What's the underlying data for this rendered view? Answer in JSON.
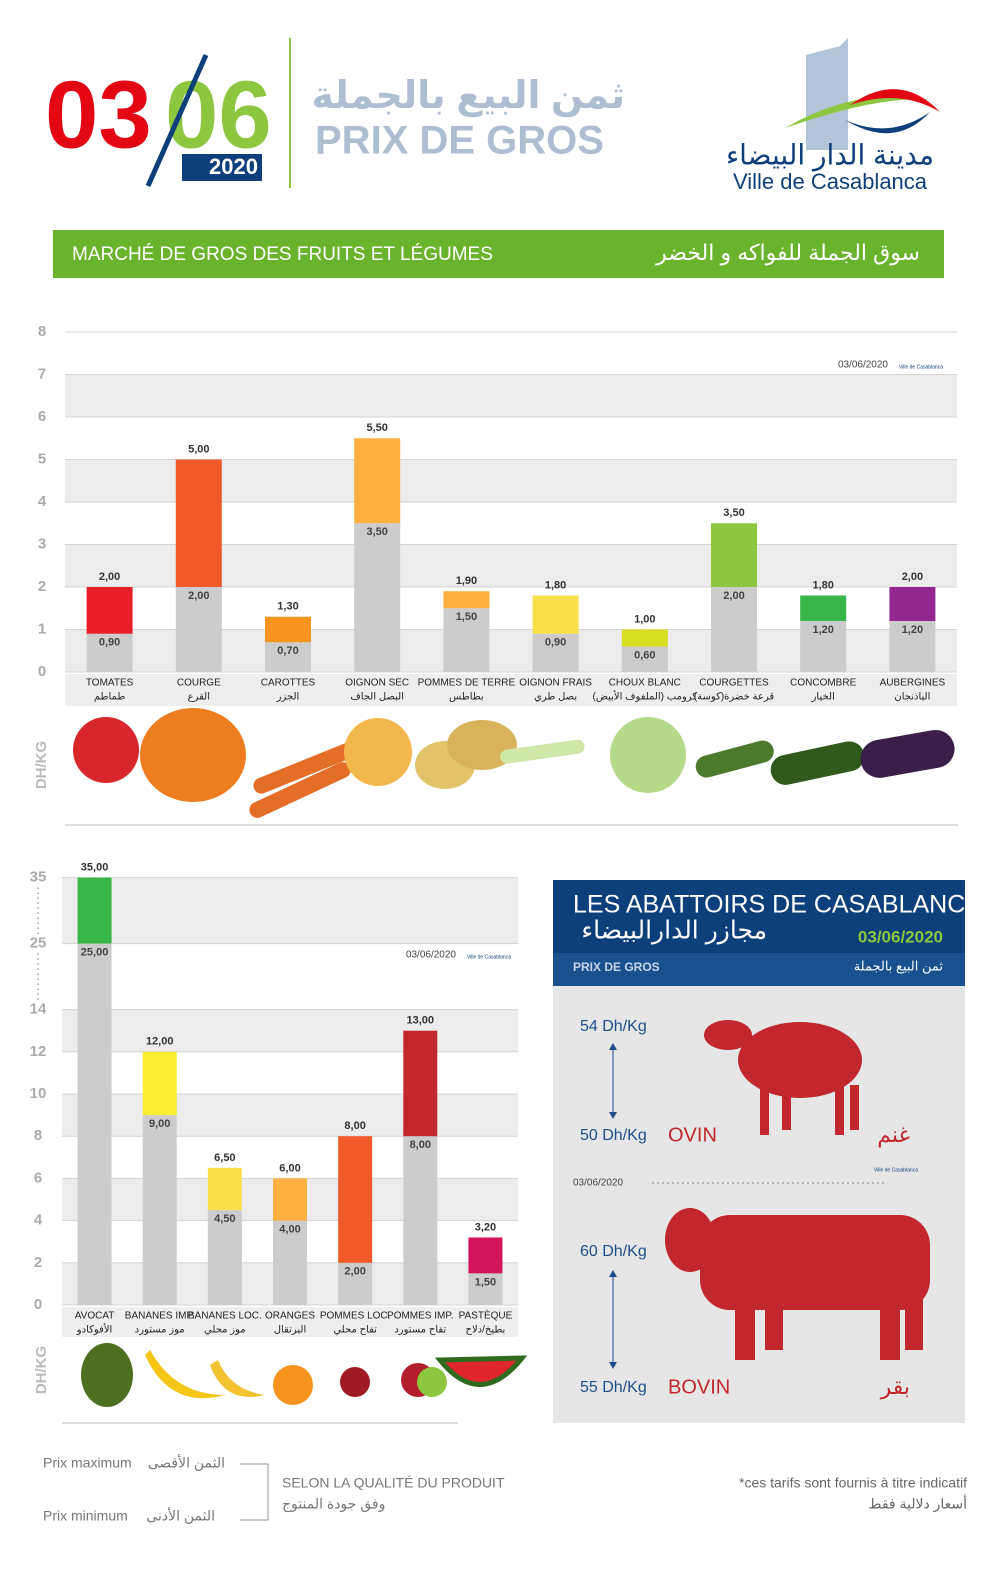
{
  "header": {
    "day": "03",
    "month": "06",
    "year": "2020",
    "title_ar": "ثمن البيع بالجملة",
    "title_fr": "PRIX DE GROS",
    "logo_ar": "مدينة الدار البيضاء",
    "logo_fr": "Ville de Casablanca"
  },
  "banner": {
    "fr": "MARCHÉ DE GROS DES FRUITS ET LÉGUMES",
    "ar": "سوق الجملة للفواكه و الخضر"
  },
  "chart_data": [
    {
      "type": "range_bar",
      "date": "03/06/2020",
      "y_label": "DH/KG",
      "categories": [
        "TOMATES",
        "COURGE",
        "CAROTTES",
        "OIGNON SEC",
        "POMMES DE TERRE",
        "OIGNON FRAIS",
        "CHOUX BLANC",
        "COURGETTES",
        "CONCOMBRE",
        "AUBERGINES"
      ],
      "categories_ar": [
        "طماطم",
        "القرع",
        "الجزر",
        "البصل الجاف",
        "بطاطس",
        "بصل طري",
        "كرومب (الملفوف الأبيض)",
        "قرعة خضرة(كوسة)",
        "الخيار",
        "الباذنجان"
      ],
      "series": [
        {
          "name": "Prix minimum",
          "name_ar": "الثمن الأدنى",
          "color": "#cccccc",
          "values": [
            0.9,
            2,
            0.7,
            3.5,
            1.5,
            0.9,
            0.6,
            2,
            1.2,
            1.2
          ],
          "value_labels": [
            "0,90",
            "2,00",
            "0,70",
            "3,50",
            "1,50",
            "0,90",
            "0,60",
            "2,00",
            "1,20",
            "1,20"
          ]
        },
        {
          "name": "Prix maximum",
          "name_ar": "الثمن الأقصى",
          "colors": [
            "#e8202a",
            "#f05a28",
            "#f7941d",
            "#fbb040",
            "#fbb040",
            "#f9e04b",
            "#d7df23",
            "#8dc63f",
            "#39b54a",
            "#92278f"
          ],
          "values": [
            2,
            5,
            1.3,
            5.5,
            1.9,
            1.8,
            1,
            3.5,
            1.8,
            2
          ],
          "value_labels": [
            "2,00",
            "5,00",
            "1,30",
            "5,50",
            "1,90",
            "1,80",
            "1,00",
            "3,50",
            "1,80",
            "2,00"
          ]
        }
      ],
      "ylim": [
        0,
        8
      ],
      "yticks": [
        0,
        1,
        2,
        3,
        4,
        5,
        6,
        7,
        8
      ],
      "grid": true
    },
    {
      "type": "range_bar",
      "date": "03/06/2020",
      "y_label": "DH/KG",
      "axis_break": true,
      "categories": [
        "AVOCAT",
        "BANANES IMP.",
        "BANANES LOC.",
        "ORANGES",
        "POMMES LOC.",
        "POMMES IMP.",
        "PASTÈQUE"
      ],
      "categories_ar": [
        "الأفوكادو",
        "موز مستورد",
        "موز محلي",
        "البرتقال",
        "تفاح محلي",
        "تفاح مستورد",
        "بطيخ/دلاح"
      ],
      "series": [
        {
          "color": "#cccccc",
          "values": [
            25,
            9,
            4.5,
            4,
            2,
            8,
            1.5
          ],
          "value_labels": [
            "25,00",
            "9,00",
            "4,50",
            "4,00",
            "2,00",
            "8,00",
            "1,50"
          ]
        },
        {
          "colors": [
            "#39b54a",
            "#f9ed32",
            "#fbe04b",
            "#fbb040",
            "#f05a28",
            "#c1272d",
            "#d4145a"
          ],
          "values": [
            35,
            12,
            6.5,
            6,
            8,
            13,
            3.2
          ],
          "value_labels": [
            "35,00",
            "12,00",
            "6,50",
            "6,00",
            "8,00",
            "13,00",
            "3,20"
          ]
        }
      ],
      "ylim": [
        0,
        35
      ],
      "yticks": [
        0,
        2,
        4,
        6,
        8,
        10,
        12,
        14,
        25,
        35
      ],
      "grid": true
    }
  ],
  "abattoirs": {
    "title_fr": "LES ABATTOIRS DE CASABLANCA",
    "title_ar": "مجازر الدارالبيضاء",
    "date": "03/06/2020",
    "sub_fr": "PRIX DE GROS",
    "sub_ar": "ثمن البيع بالجملة",
    "ovin": {
      "max": "54 Dh/Kg",
      "min": "50 Dh/Kg",
      "fr": "OVIN",
      "ar": "غنم"
    },
    "mid_date": "03/06/2020",
    "bovin": {
      "max": "60 Dh/Kg",
      "min": "55 Dh/Kg",
      "fr": "BOVIN",
      "ar": "بقر"
    }
  },
  "footer": {
    "quality_fr": "SELON LA QUALITÉ DU PRODUIT",
    "quality_ar": "وفق جودة المنتوج",
    "note_fr": "*ces tarifs sont fournis à titre indicatif",
    "note_ar": "أسعار دلالية فقط"
  }
}
